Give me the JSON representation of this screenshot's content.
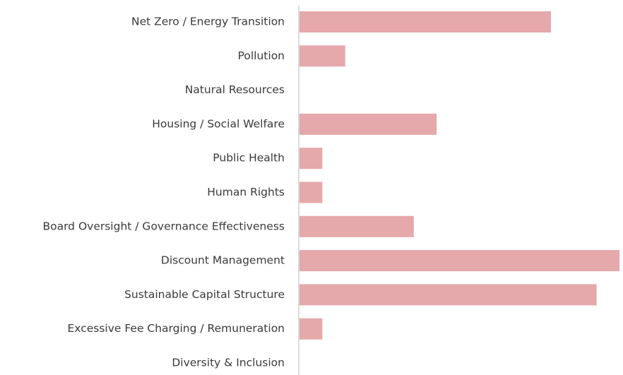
{
  "chart_data": {
    "type": "hbar",
    "categories": [
      "Net Zero / Energy Transition",
      "Pollution",
      "Natural Resources",
      "Housing / Social Welfare",
      "Public Health",
      "Human Rights",
      "Board Oversight / Governance Effectiveness",
      "Discount Management",
      "Sustainable Capital Structure",
      "Excessive Fee Charging / Remuneration",
      "Diversity & Inclusion"
    ],
    "values": [
      11,
      2,
      0,
      6,
      1,
      1,
      5,
      14,
      13,
      1,
      0
    ],
    "color": "#e5a8ab",
    "xlim": [
      0,
      14
    ]
  }
}
